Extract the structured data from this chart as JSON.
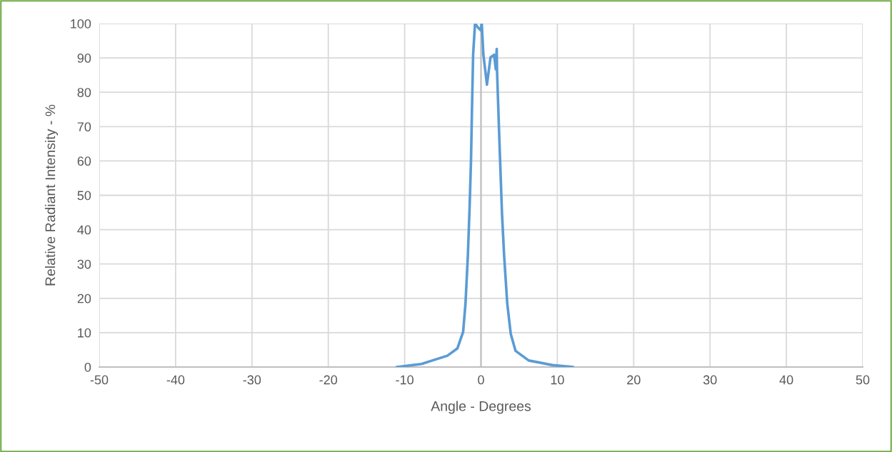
{
  "chart_data": {
    "type": "line",
    "xlabel": "Angle - Degrees",
    "ylabel": "Relative Radiant Intensity - %",
    "x": [
      -11.0,
      -7.8,
      -4.4,
      -3.1,
      -2.34,
      -2.03,
      -1.72,
      -1.5,
      -1.31,
      -1.19,
      -1.03,
      -0.78,
      -0.38,
      -0.06,
      0.1,
      0.31,
      0.78,
      1.25,
      1.72,
      1.94,
      2.06,
      2.1,
      2.34,
      2.56,
      2.75,
      3.03,
      3.44,
      3.9,
      4.53,
      6.25,
      9.4,
      12.0
    ],
    "series": [
      {
        "color": "#5b9bd5",
        "values": [
          0,
          0.9,
          3.3,
          5.4,
          10.2,
          18.5,
          32.4,
          46,
          60,
          74,
          91,
          100,
          98.8,
          98.1,
          100,
          91,
          82.2,
          90.2,
          90.9,
          86.7,
          92.6,
          86.4,
          70.4,
          56.6,
          44.8,
          32.4,
          18.5,
          9.6,
          4.7,
          1.9,
          0.55,
          0
        ]
      }
    ],
    "xlim": [
      -50,
      50
    ],
    "xticks": [
      -50,
      -40,
      -30,
      -20,
      -10,
      0,
      10,
      20,
      30,
      40,
      50
    ],
    "ylim": [
      0,
      100
    ],
    "yticks": [
      0,
      10,
      20,
      30,
      40,
      50,
      60,
      70,
      80,
      90,
      100
    ],
    "grid": true,
    "legend": false,
    "marker": "none",
    "line_style": "solid"
  }
}
